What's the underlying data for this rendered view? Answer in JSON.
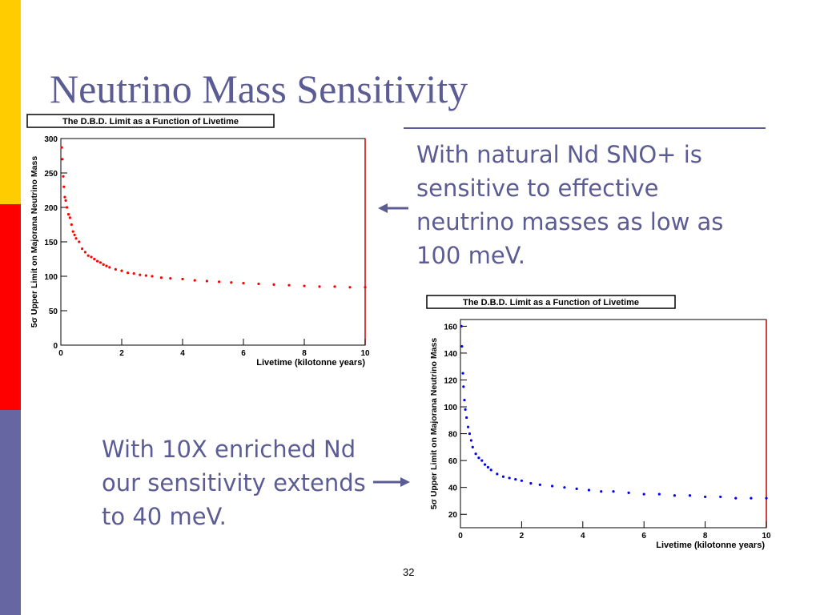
{
  "slide": {
    "title": "Neutrino Mass Sensitivity",
    "text_natural": "With natural Nd SNO+ is sensitive to effective neutrino masses as low as 100 meV.",
    "text_enriched": "With 10X enriched Nd our sensitivity extends to 40 meV.",
    "page_number": "32",
    "colors": {
      "title": "#5c5c94",
      "sidebar": [
        "#ffcc00",
        "#ff0000",
        "#6666a3"
      ]
    }
  },
  "chart_data": [
    {
      "type": "scatter",
      "title": "The D.B.D. Limit as a Function of Livetime",
      "xlabel": "Livetime (kilotonne years)",
      "ylabel": "5σ Upper Limit on Majorana Neutrino Mass",
      "xlim": [
        0,
        10
      ],
      "ylim": [
        0,
        300
      ],
      "xticks": [
        0,
        2,
        4,
        6,
        8,
        10
      ],
      "yticks": [
        0,
        50,
        100,
        150,
        200,
        250,
        300
      ],
      "series": [
        {
          "color": "#ff0000",
          "points": [
            [
              0.03,
              287
            ],
            [
              0.05,
              270
            ],
            [
              0.08,
              245
            ],
            [
              0.1,
              230
            ],
            [
              0.13,
              215
            ],
            [
              0.16,
              210
            ],
            [
              0.2,
              200
            ],
            [
              0.25,
              190
            ],
            [
              0.3,
              185
            ],
            [
              0.35,
              175
            ],
            [
              0.4,
              165
            ],
            [
              0.45,
              160
            ],
            [
              0.5,
              155
            ],
            [
              0.6,
              150
            ],
            [
              0.7,
              140
            ],
            [
              0.8,
              135
            ],
            [
              0.9,
              130
            ],
            [
              1.0,
              128
            ],
            [
              1.1,
              125
            ],
            [
              1.2,
              122
            ],
            [
              1.3,
              120
            ],
            [
              1.4,
              117
            ],
            [
              1.5,
              115
            ],
            [
              1.6,
              113
            ],
            [
              1.8,
              110
            ],
            [
              2.0,
              108
            ],
            [
              2.2,
              105
            ],
            [
              2.4,
              104
            ],
            [
              2.6,
              102
            ],
            [
              2.8,
              101
            ],
            [
              3.0,
              100
            ],
            [
              3.3,
              98
            ],
            [
              3.6,
              97
            ],
            [
              4.0,
              96
            ],
            [
              4.4,
              94
            ],
            [
              4.8,
              93
            ],
            [
              5.2,
              92
            ],
            [
              5.6,
              91
            ],
            [
              6.0,
              90
            ],
            [
              6.5,
              89
            ],
            [
              7.0,
              88
            ],
            [
              7.5,
              87
            ],
            [
              8.0,
              86
            ],
            [
              8.5,
              85
            ],
            [
              9.0,
              85
            ],
            [
              9.5,
              84
            ],
            [
              10.0,
              84
            ]
          ]
        }
      ]
    },
    {
      "type": "scatter",
      "title": "The D.B.D. Limit as a Function of Livetime",
      "xlabel": "Livetime (kilotonne years)",
      "ylabel": "5σ Upper Limit on Majorana Neutrino Mass",
      "xlim": [
        0,
        10
      ],
      "ylim": [
        10,
        165
      ],
      "xticks": [
        0,
        2,
        4,
        6,
        8,
        10
      ],
      "yticks": [
        20,
        40,
        60,
        80,
        100,
        120,
        140,
        160
      ],
      "series": [
        {
          "color": "#0000ff",
          "points": [
            [
              0.03,
              160
            ],
            [
              0.05,
              145
            ],
            [
              0.08,
              125
            ],
            [
              0.1,
              115
            ],
            [
              0.13,
              105
            ],
            [
              0.16,
              98
            ],
            [
              0.2,
              92
            ],
            [
              0.25,
              85
            ],
            [
              0.3,
              80
            ],
            [
              0.35,
              75
            ],
            [
              0.4,
              70
            ],
            [
              0.5,
              65
            ],
            [
              0.6,
              62
            ],
            [
              0.7,
              60
            ],
            [
              0.8,
              57
            ],
            [
              0.9,
              55
            ],
            [
              1.0,
              53
            ],
            [
              1.2,
              50
            ],
            [
              1.4,
              48
            ],
            [
              1.6,
              47
            ],
            [
              1.8,
              46
            ],
            [
              2.0,
              45
            ],
            [
              2.3,
              43
            ],
            [
              2.6,
              42
            ],
            [
              3.0,
              41
            ],
            [
              3.4,
              40
            ],
            [
              3.8,
              39
            ],
            [
              4.2,
              38
            ],
            [
              4.6,
              37
            ],
            [
              5.0,
              37
            ],
            [
              5.5,
              36
            ],
            [
              6.0,
              35
            ],
            [
              6.5,
              35
            ],
            [
              7.0,
              34
            ],
            [
              7.5,
              34
            ],
            [
              8.0,
              33
            ],
            [
              8.5,
              33
            ],
            [
              9.0,
              32
            ],
            [
              9.5,
              32
            ],
            [
              10.0,
              32
            ]
          ]
        }
      ]
    }
  ]
}
